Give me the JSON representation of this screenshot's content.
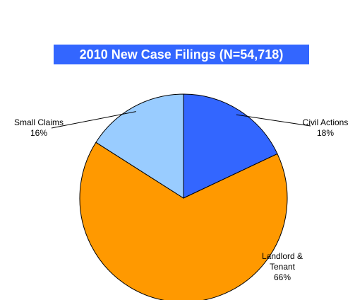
{
  "chart_data": {
    "type": "pie",
    "title": "2010 New Case Filings (N=54,718)",
    "categories": [
      "Civil Actions",
      "Landlord & Tenant",
      "Small Claims"
    ],
    "values": [
      18,
      66,
      16
    ],
    "value_labels": [
      "18%",
      "66%",
      "16%"
    ],
    "colors": [
      "#3366ff",
      "#ff9900",
      "#99ccff"
    ]
  }
}
